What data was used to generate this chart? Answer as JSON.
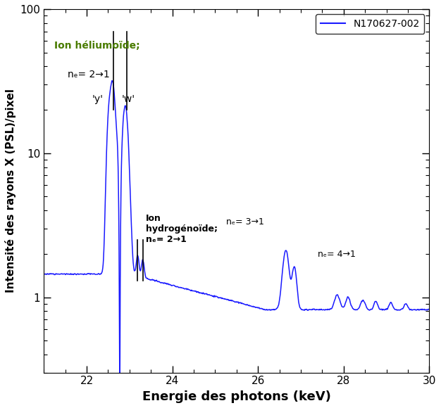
{
  "title": "",
  "xlabel": "Energie des photons (keV)",
  "ylabel": "Intensité des rayons X (PSL)/pixel",
  "legend_label": "N170627-002",
  "line_color": "#1a1aff",
  "xlim": [
    21,
    30
  ],
  "ylim_log": [
    0.3,
    100
  ],
  "xticks": [
    22,
    24,
    26,
    28,
    30
  ],
  "background_color": "#ffffff",
  "he_label": "Ion héliumoïde;",
  "he_ne": "nₑ= 2→1",
  "h_label1": "Ion",
  "h_label2": "hydrogénoïde;",
  "h_ne": "nₑ= 2→1",
  "ne31": "nₑ= 3→1",
  "ne41": "nₑ= 4→1",
  "vline_y_x": 22.62,
  "vline_w_x": 22.93,
  "vline_h1_x": 23.19,
  "vline_h2_x": 23.31
}
